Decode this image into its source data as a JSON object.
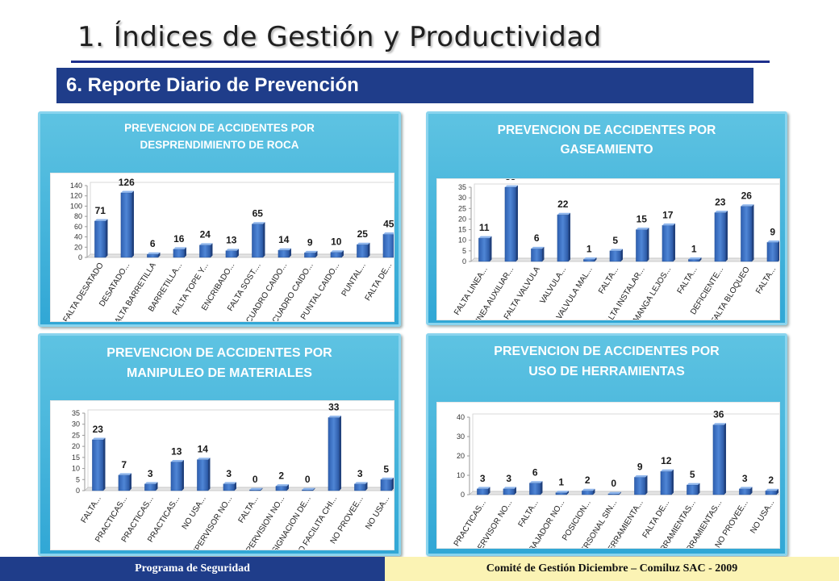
{
  "header": {
    "title": "1. Índices de Gestión y Productividad",
    "subtitle": "6. Reporte Diario de Prevención"
  },
  "footer": {
    "left": "Programa de Seguridad",
    "right": "Comité de Gestión Diciembre – Comiluz  SAC - 2009"
  },
  "chart_data": [
    {
      "type": "bar",
      "title_lines": [
        "PREVENCION DE ACCIDENTES POR",
        "DESPRENDIMIENTO  DE ROCA"
      ],
      "categories": [
        "FALTA DESATADO",
        "DESATADO...",
        "FALTA BARRETILLA",
        "BARRETILLA...",
        "FALTA TOPE Y...",
        "ENCRIBADO...",
        "FALTA SOST....",
        "CUADRO CAIDO...",
        "CUADRO CAIDO...",
        "PUNTAL CAIDO...",
        "PUNTAL...",
        "FALTA DE..."
      ],
      "values": [
        71,
        126,
        6,
        16,
        24,
        13,
        65,
        14,
        9,
        10,
        25,
        45
      ],
      "ylim": [
        0,
        140
      ],
      "yticks": [
        "0",
        "20",
        "40",
        "60",
        "80",
        "100",
        "120",
        "140"
      ]
    },
    {
      "type": "bar",
      "title_lines": [
        "PREVENCION DE ACCIDENTES POR",
        "GASEAMIENTO"
      ],
      "categories": [
        "FALTA LINEA...",
        "LINEA AUXILIAR...",
        "FALTA VALVULA",
        "VALVULA...",
        "VALVULA MAL...",
        "FALTA...",
        "FALTA INSTALAR...",
        "MANGA LEJOS...",
        "FALTA...",
        "DEFICIENTE...",
        "FALTA BLOQUEO",
        "FALTA..."
      ],
      "values": [
        11,
        35,
        6,
        22,
        1,
        5,
        15,
        17,
        1,
        23,
        26,
        9
      ],
      "ylim": [
        0,
        35
      ],
      "yticks": [
        "0",
        "5",
        "10",
        "15",
        "20",
        "25",
        "30",
        "35"
      ]
    },
    {
      "type": "bar",
      "title_lines": [
        "PREVENCION DE ACCIDENTES POR",
        "MANIPULEO DE MATERIALES"
      ],
      "categories": [
        "FALTA...",
        "PRACTICAS...",
        "PRACTICAS...",
        "PRACTICAS...",
        "NO USA...",
        "SUPERVISOR NO...",
        "FALTA...",
        "SUPERVISION NO...",
        "ASIGNACION DE...",
        "NO FACILITA CHI...",
        "NO PROVEE...",
        "NO USA..."
      ],
      "values": [
        23,
        7,
        3,
        13,
        14,
        3,
        0,
        2,
        0,
        33,
        3,
        5
      ],
      "ylim": [
        0,
        35
      ],
      "yticks": [
        "0",
        "5",
        "10",
        "15",
        "20",
        "25",
        "30",
        "35"
      ]
    },
    {
      "type": "bar",
      "title_lines": [
        "PREVENCION DE ACCIDENTES POR",
        "USO DE HERRAMIENTAS"
      ],
      "categories": [
        "PRACTICAS...",
        "SUPERVISOR NO...",
        "FALTA...",
        "TRABAJADOR NO...",
        "POSICION...",
        "PERSONAL SIN...",
        "HERRAMIENTA...",
        "FALTA DE...",
        "HERRAMIENTAS...",
        "HERRAMIENTAS...",
        "NO PROVEE...",
        "NO USA..."
      ],
      "values": [
        3,
        3,
        6,
        1,
        2,
        0,
        9,
        12,
        5,
        36,
        3,
        2
      ],
      "ylim": [
        0,
        40
      ],
      "yticks": [
        "0",
        "10",
        "20",
        "30",
        "40"
      ]
    }
  ]
}
